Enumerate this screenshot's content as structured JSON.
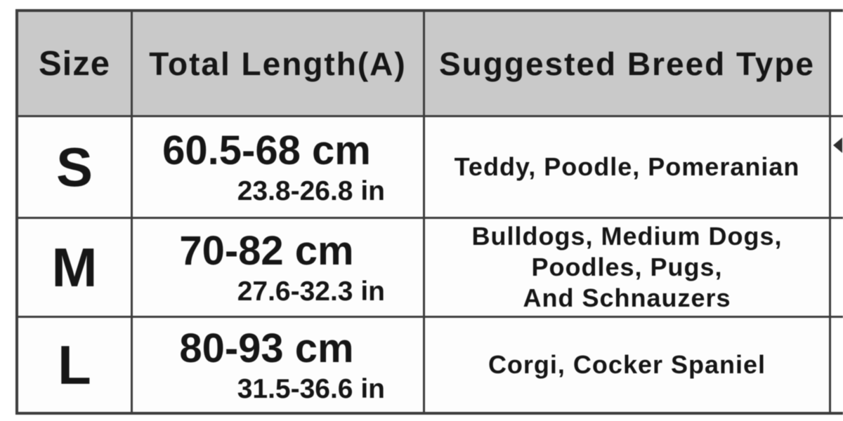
{
  "chart_data": {
    "type": "table",
    "title": "",
    "columns": [
      "Size",
      "Total Length(A)",
      "Suggested Breed Type"
    ],
    "rows": [
      [
        "S",
        "60.5-68 cm",
        "23.8-26.8 in",
        "Teddy, Poodle, Pomeranian"
      ],
      [
        "M",
        "70-82 cm",
        "27.6-32.3 in",
        "Bulldogs, Medium Dogs, Poodles, Pugs, And Schnauzers"
      ],
      [
        "L",
        "80-93 cm",
        "31.5-36.6 in",
        "Corgi, Cocker Spaniel"
      ]
    ],
    "layout_hints": {
      "header_row_shaded": true,
      "grid": "on"
    }
  },
  "table": {
    "headers": [
      "Size",
      "Total Length(A)",
      "Suggested Breed Type"
    ],
    "rows": [
      {
        "size": "S",
        "length_cm": "60.5-68 cm",
        "length_in": "23.8-26.8 in",
        "breeds": [
          "Teddy, Poodle, Pomeranian"
        ]
      },
      {
        "size": "M",
        "length_cm": "70-82 cm",
        "length_in": "27.6-32.3 in",
        "breeds": [
          "Bulldogs, Medium Dogs,",
          "Poodles, Pugs,",
          "And Schnauzers"
        ]
      },
      {
        "size": "L",
        "length_cm": "80-93 cm",
        "length_in": "31.5-36.6 in",
        "breeds": [
          "Corgi, Cocker Spaniel"
        ]
      }
    ]
  },
  "icons": {
    "right_edge_mark": "left-arrowhead-icon"
  },
  "colors": {
    "header_bg": "#c9c9c9",
    "border": "#3d3d3d",
    "text": "#161616",
    "cell_bg": "#ffffff"
  }
}
